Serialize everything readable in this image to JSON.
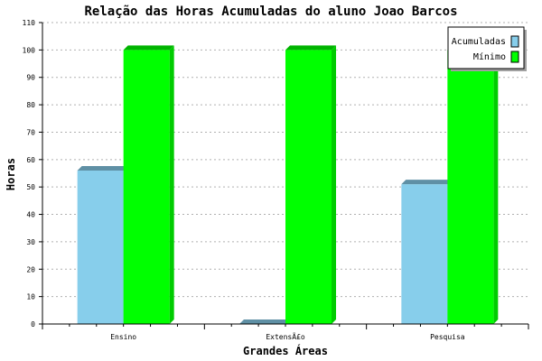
{
  "chart_data": {
    "type": "bar",
    "title": "Relação das Horas Acumuladas do aluno Joao Barcos",
    "xlabel": "Grandes Áreas",
    "ylabel": "Horas",
    "categories": [
      "Ensino",
      "ExtensÃ£o",
      "Pesquisa"
    ],
    "ylim": [
      0,
      110
    ],
    "yticks": [
      0,
      10,
      20,
      30,
      40,
      50,
      60,
      70,
      80,
      90,
      100,
      110
    ],
    "grid": true,
    "legend_position": "top-right",
    "series": [
      {
        "name": "Acumuladas",
        "color": "#87ceeb",
        "values": [
          56,
          0,
          51
        ]
      },
      {
        "name": "Mínimo",
        "color": "#00ff00",
        "values": [
          100,
          100,
          100
        ]
      }
    ]
  }
}
